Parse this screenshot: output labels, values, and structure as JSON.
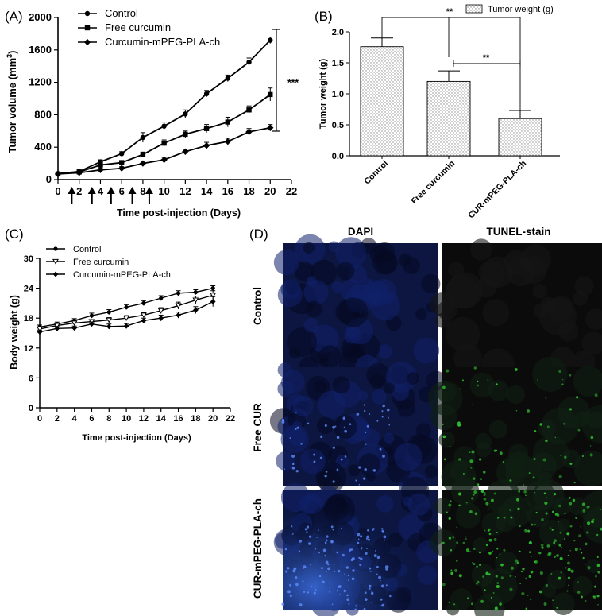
{
  "panel_a": {
    "label": "(A)",
    "arrows_x": [
      1.3,
      3.2,
      5.0,
      7.0,
      8.6
    ],
    "chart_data": {
      "type": "line",
      "ylabel_main": "Tumor volume (mm",
      "ylabel_sup": "3",
      "ylabel_end": ")",
      "xlabel": "Time post-injection (Days)",
      "xlim": [
        0,
        22
      ],
      "ylim": [
        0,
        2000
      ],
      "xticks": [
        0,
        2,
        4,
        6,
        8,
        10,
        12,
        14,
        16,
        18,
        20,
        22
      ],
      "yticks": [
        0,
        400,
        800,
        1200,
        1600,
        2000
      ],
      "significance": "***",
      "series": [
        {
          "name": "Control",
          "marker": "circle",
          "x": [
            0,
            2,
            4,
            6,
            8,
            10,
            12,
            14,
            16,
            18,
            20
          ],
          "y": [
            75,
            100,
            220,
            320,
            520,
            660,
            810,
            1060,
            1250,
            1450,
            1720
          ],
          "err": [
            15,
            15,
            25,
            25,
            60,
            50,
            50,
            40,
            40,
            50,
            40
          ]
        },
        {
          "name": "Free curcumin",
          "marker": "square",
          "x": [
            0,
            2,
            4,
            6,
            8,
            10,
            12,
            14,
            16,
            18,
            20
          ],
          "y": [
            70,
            95,
            180,
            210,
            310,
            450,
            560,
            630,
            710,
            860,
            1050
          ],
          "err": [
            15,
            15,
            20,
            25,
            30,
            40,
            40,
            50,
            60,
            50,
            80
          ]
        },
        {
          "name": "Curcumin-mPEG-PLA-ch",
          "marker": "diamond",
          "x": [
            0,
            2,
            4,
            6,
            8,
            10,
            12,
            14,
            16,
            18,
            20
          ],
          "y": [
            70,
            85,
            120,
            140,
            200,
            245,
            345,
            420,
            470,
            590,
            640
          ],
          "err": [
            15,
            15,
            20,
            20,
            30,
            30,
            30,
            40,
            40,
            40,
            40
          ]
        }
      ]
    }
  },
  "panel_b": {
    "label": "(B)",
    "chart_data": {
      "type": "bar",
      "ylabel": "Tumor weight (g)",
      "legend": "Tumor weight (g)",
      "categories": [
        "Control",
        "Free curcumin",
        "CUR-mPEG-PLA-ch"
      ],
      "values": [
        1.76,
        1.2,
        0.6
      ],
      "err": [
        0.14,
        0.17,
        0.13
      ],
      "ylim": [
        0,
        2.0
      ],
      "yticks": [
        "0.0",
        "0.5",
        "1.0",
        "1.5",
        "2.0"
      ],
      "sig_1": "**",
      "sig_2": "**"
    }
  },
  "panel_c": {
    "label": "(C)",
    "chart_data": {
      "type": "line",
      "ylabel": "Body weight (g)",
      "xlabel": "Time post-injection (Days)",
      "xlim": [
        0,
        22
      ],
      "ylim": [
        0,
        30
      ],
      "xticks": [
        0,
        2,
        4,
        6,
        8,
        10,
        12,
        14,
        16,
        18,
        20,
        22
      ],
      "yticks": [
        0,
        6,
        12,
        18,
        24,
        30
      ],
      "series": [
        {
          "name": "Control",
          "marker": "circle",
          "x": [
            0,
            2,
            4,
            6,
            8,
            10,
            12,
            14,
            16,
            18,
            20
          ],
          "y": [
            16.2,
            16.8,
            17.5,
            18.5,
            19.2,
            20.2,
            21.0,
            22.0,
            23.0,
            23.2,
            24.0
          ],
          "err": [
            0.4,
            0.4,
            0.4,
            0.5,
            0.5,
            0.5,
            0.5,
            0.5,
            0.5,
            0.5,
            0.5
          ]
        },
        {
          "name": "Free curcumin",
          "marker": "triangle-down",
          "x": [
            0,
            2,
            4,
            6,
            8,
            10,
            12,
            14,
            16,
            18,
            20
          ],
          "y": [
            15.8,
            16.5,
            17.0,
            17.3,
            17.6,
            18.0,
            18.6,
            19.5,
            20.5,
            21.6,
            22.6
          ],
          "err": [
            0.4,
            0.4,
            0.4,
            0.4,
            0.5,
            0.5,
            0.5,
            0.6,
            0.7,
            0.8,
            0.9
          ]
        },
        {
          "name": "Curcumin-mPEG-PLA-ch",
          "marker": "diamond",
          "x": [
            0,
            2,
            4,
            6,
            8,
            10,
            12,
            14,
            16,
            18,
            20
          ],
          "y": [
            15.2,
            15.9,
            16.0,
            16.8,
            16.3,
            16.4,
            17.5,
            18.0,
            18.6,
            19.6,
            21.3
          ],
          "err": [
            0.4,
            0.4,
            0.4,
            0.4,
            0.5,
            0.5,
            0.5,
            0.6,
            0.6,
            0.7,
            1.0
          ]
        }
      ]
    }
  },
  "panel_d": {
    "label": "(D)",
    "col_dapi": "DAPI",
    "col_tunel": "TUNEL-stain",
    "row_control": "Control",
    "row_free": "Free CUR",
    "row_cur": "CUR-mPEG-PLA-ch",
    "colors": {
      "dapi": "#1a3a9c",
      "tunel": "#2fbf2f"
    }
  }
}
